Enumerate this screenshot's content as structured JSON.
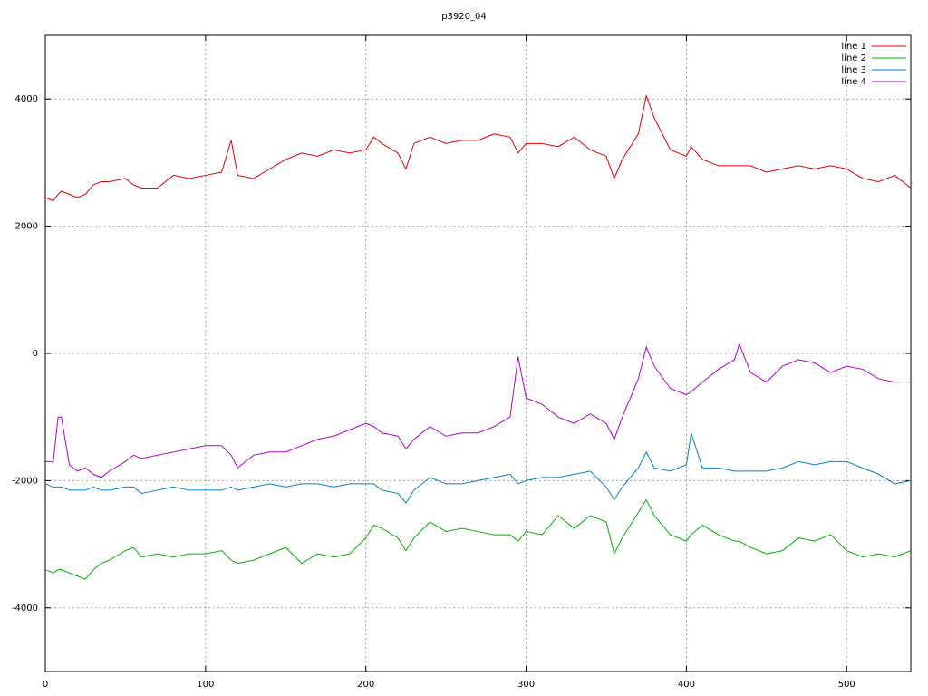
{
  "chart_data": {
    "type": "line",
    "title": "p3920_04",
    "x": [
      0,
      5,
      8,
      10,
      15,
      20,
      25,
      30,
      35,
      40,
      50,
      55,
      60,
      70,
      80,
      90,
      100,
      110,
      116,
      120,
      130,
      140,
      150,
      160,
      170,
      180,
      190,
      200,
      205,
      210,
      220,
      225,
      230,
      240,
      250,
      260,
      270,
      280,
      290,
      295,
      300,
      310,
      320,
      330,
      340,
      350,
      355,
      360,
      370,
      375,
      380,
      390,
      400,
      403,
      410,
      420,
      430,
      433,
      440,
      450,
      460,
      470,
      480,
      490,
      500,
      510,
      520,
      530,
      540
    ],
    "series": [
      {
        "name": "line 1",
        "color": "#e00000",
        "values": [
          2450,
          2400,
          2500,
          2550,
          2500,
          2450,
          2500,
          2650,
          2700,
          2700,
          2750,
          2650,
          2600,
          2600,
          2800,
          2750,
          2800,
          2850,
          3350,
          2800,
          2750,
          2900,
          3050,
          3150,
          3100,
          3200,
          3150,
          3200,
          3400,
          3300,
          3150,
          2900,
          3300,
          3400,
          3300,
          3350,
          3350,
          3450,
          3400,
          3150,
          3300,
          3300,
          3250,
          3400,
          3200,
          3100,
          2750,
          3050,
          3450,
          4050,
          3700,
          3200,
          3100,
          3250,
          3050,
          2950,
          2950,
          2950,
          2950,
          2850,
          2900,
          2950,
          2900,
          2950,
          2900,
          2750,
          2700,
          2800,
          2600
        ]
      },
      {
        "name": "line 2",
        "color": "#00b000",
        "values": [
          -3400,
          -3450,
          -3400,
          -3400,
          -3450,
          -3500,
          -3550,
          -3400,
          -3300,
          -3250,
          -3100,
          -3050,
          -3200,
          -3150,
          -3200,
          -3150,
          -3150,
          -3100,
          -3250,
          -3300,
          -3250,
          -3150,
          -3050,
          -3300,
          -3150,
          -3200,
          -3150,
          -2900,
          -2700,
          -2750,
          -2900,
          -3100,
          -2900,
          -2650,
          -2800,
          -2750,
          -2800,
          -2850,
          -2850,
          -2950,
          -2800,
          -2850,
          -2550,
          -2750,
          -2550,
          -2650,
          -3150,
          -2900,
          -2500,
          -2300,
          -2550,
          -2850,
          -2950,
          -2850,
          -2700,
          -2850,
          -2950,
          -2950,
          -3050,
          -3150,
          -3100,
          -2900,
          -2950,
          -2850,
          -3100,
          -3200,
          -3150,
          -3200,
          -3100
        ]
      },
      {
        "name": "line 3",
        "color": "#0080d0",
        "values": [
          -2050,
          -2100,
          -2100,
          -2100,
          -2150,
          -2150,
          -2150,
          -2100,
          -2150,
          -2150,
          -2100,
          -2100,
          -2200,
          -2150,
          -2100,
          -2150,
          -2150,
          -2150,
          -2100,
          -2150,
          -2100,
          -2050,
          -2100,
          -2050,
          -2050,
          -2100,
          -2050,
          -2050,
          -2050,
          -2150,
          -2200,
          -2350,
          -2150,
          -1950,
          -2050,
          -2050,
          -2000,
          -1950,
          -1900,
          -2050,
          -2000,
          -1950,
          -1950,
          -1900,
          -1850,
          -2100,
          -2300,
          -2100,
          -1800,
          -1550,
          -1800,
          -1850,
          -1750,
          -1250,
          -1800,
          -1800,
          -1850,
          -1850,
          -1850,
          -1850,
          -1800,
          -1700,
          -1750,
          -1700,
          -1700,
          -1800,
          -1900,
          -2050,
          -2000
        ]
      },
      {
        "name": "line 4",
        "color": "#b000d0",
        "values": [
          -1700,
          -1700,
          -1000,
          -1000,
          -1750,
          -1850,
          -1800,
          -1900,
          -1950,
          -1850,
          -1700,
          -1600,
          -1650,
          -1600,
          -1550,
          -1500,
          -1450,
          -1450,
          -1600,
          -1800,
          -1600,
          -1550,
          -1550,
          -1450,
          -1350,
          -1300,
          -1200,
          -1100,
          -1150,
          -1250,
          -1300,
          -1500,
          -1350,
          -1150,
          -1300,
          -1250,
          -1250,
          -1150,
          -1000,
          -50,
          -700,
          -800,
          -1000,
          -1100,
          -950,
          -1100,
          -1350,
          -1000,
          -400,
          100,
          -200,
          -550,
          -650,
          -600,
          -450,
          -250,
          -100,
          150,
          -300,
          -450,
          -200,
          -100,
          -150,
          -300,
          -200,
          -250,
          -400,
          -450,
          -450
        ]
      }
    ],
    "xlim": [
      0,
      540
    ],
    "ylim": [
      -5000,
      5000
    ],
    "xticks": [
      0,
      100,
      200,
      300,
      400,
      500
    ],
    "yticks": [
      -4000,
      -2000,
      0,
      2000,
      4000
    ],
    "grid": true,
    "legend": "top right"
  }
}
